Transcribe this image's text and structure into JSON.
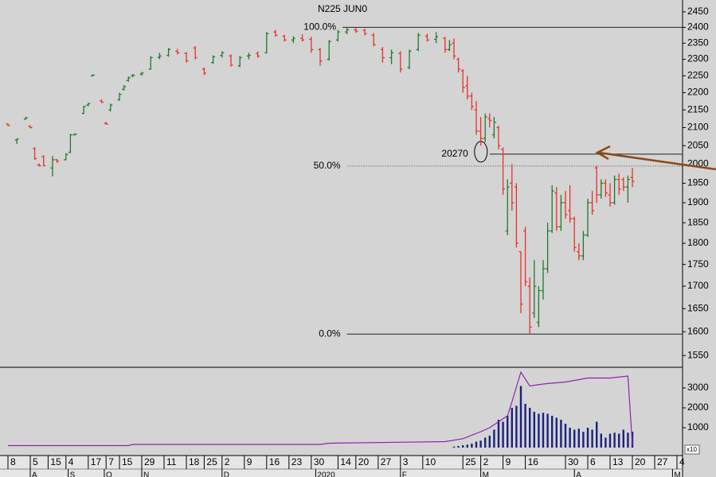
{
  "chart_data": [
    {
      "type": "ohlc",
      "title": "N225 JUN0",
      "log_scale": true,
      "ylim": [
        1526,
        2489
      ],
      "yticks": [
        1550,
        1600,
        1650,
        1700,
        1750,
        1800,
        1850,
        1900,
        1950,
        2000,
        2050,
        2100,
        2150,
        2200,
        2250,
        2300,
        2350,
        2400,
        2450
      ],
      "xlim": [
        0,
        151.25
      ],
      "up_color": "#1f7a2a",
      "down_color": "#e8302a",
      "x": [
        0,
        2,
        4,
        5,
        6,
        7,
        8,
        10,
        11,
        13,
        14,
        15,
        17,
        18,
        19,
        21,
        22,
        23,
        25,
        26,
        27,
        28,
        30,
        32,
        34,
        36,
        38,
        40,
        42,
        44,
        46,
        48,
        50,
        52,
        54,
        56,
        58,
        60,
        62,
        64,
        66,
        68,
        70,
        72,
        74,
        76,
        78,
        80,
        82,
        84,
        86,
        88,
        90,
        92,
        94,
        96,
        98,
        99,
        100,
        101,
        102,
        103,
        104,
        105,
        106,
        107,
        108,
        109,
        110,
        111,
        112,
        113,
        114,
        115,
        116,
        117,
        118,
        119,
        120,
        121,
        122,
        123,
        124,
        125,
        126,
        127,
        128,
        129,
        130,
        131,
        132,
        133,
        134,
        135,
        136,
        137,
        138,
        139,
        140
      ],
      "open": [
        2110,
        2065,
        2124,
        2104,
        2042,
        1998,
        2020,
        1990,
        2012,
        2012,
        2032,
        2080,
        2140,
        2164,
        2250,
        2176,
        2112,
        2150,
        2180,
        2210,
        2236,
        2250,
        2255,
        2270,
        2306,
        2312,
        2325,
        2318,
        2335,
        2270,
        2290,
        2312,
        2310,
        2280,
        2310,
        2318,
        2320,
        2385,
        2372,
        2360,
        2365,
        2362,
        2330,
        2300,
        2360,
        2385,
        2392,
        2390,
        2375,
        2330,
        2305,
        2318,
        2275,
        2330,
        2372,
        2362,
        2365,
        2330,
        2350,
        2300,
        2265,
        2220,
        2190,
        2150,
        2090,
        2070,
        2125,
        2080,
        2100,
        2040,
        1830,
        1950,
        1940,
        1780,
        1830,
        1700,
        1640,
        1620,
        1690,
        1740,
        1830,
        1925,
        1840,
        1900,
        1880,
        1860,
        1780,
        1770,
        1820,
        1900,
        1990,
        1920,
        1950,
        1920,
        1900,
        1960,
        1960,
        1940,
        1965
      ],
      "high": [
        2112,
        2070,
        2130,
        2106,
        2046,
        2002,
        2024,
        2022,
        2014,
        2030,
        2082,
        2084,
        2162,
        2170,
        2254,
        2180,
        2116,
        2168,
        2200,
        2222,
        2248,
        2255,
        2262,
        2310,
        2320,
        2335,
        2332,
        2322,
        2340,
        2275,
        2312,
        2325,
        2315,
        2310,
        2320,
        2324,
        2385,
        2392,
        2376,
        2372,
        2378,
        2370,
        2335,
        2360,
        2392,
        2398,
        2400,
        2396,
        2382,
        2338,
        2330,
        2325,
        2330,
        2382,
        2380,
        2385,
        2370,
        2360,
        2365,
        2305,
        2270,
        2250,
        2200,
        2175,
        2130,
        2140,
        2140,
        2130,
        2105,
        2045,
        1960,
        2000,
        1950,
        1780,
        1840,
        1720,
        1760,
        1700,
        1760,
        1850,
        1945,
        1940,
        1920,
        1930,
        1945,
        1865,
        1800,
        1830,
        1910,
        1930,
        1995,
        1960,
        1960,
        1950,
        1970,
        1975,
        1965,
        1970,
        1990
      ],
      "low": [
        2104,
        2055,
        2122,
        2098,
        2012,
        1994,
        1994,
        1968,
        2004,
        2010,
        2030,
        2078,
        2138,
        2160,
        2248,
        2170,
        2108,
        2146,
        2176,
        2206,
        2232,
        2245,
        2250,
        2268,
        2300,
        2308,
        2315,
        2290,
        2300,
        2252,
        2286,
        2305,
        2278,
        2276,
        2300,
        2305,
        2318,
        2370,
        2355,
        2350,
        2355,
        2320,
        2280,
        2296,
        2355,
        2378,
        2382,
        2375,
        2340,
        2290,
        2285,
        2260,
        2270,
        2325,
        2355,
        2350,
        2320,
        2325,
        2300,
        2260,
        2200,
        2180,
        2150,
        2080,
        2050,
        2060,
        2100,
        2070,
        2040,
        1920,
        1820,
        1880,
        1790,
        1640,
        1700,
        1595,
        1630,
        1610,
        1670,
        1730,
        1825,
        1830,
        1830,
        1860,
        1850,
        1780,
        1760,
        1760,
        1815,
        1870,
        1900,
        1910,
        1915,
        1890,
        1895,
        1920,
        1930,
        1900,
        1940
      ],
      "close": [
        2106,
        2068,
        2128,
        2100,
        2015,
        1996,
        1996,
        2012,
        2008,
        2026,
        2080,
        2082,
        2160,
        2168,
        2252,
        2172,
        2110,
        2164,
        2195,
        2218,
        2244,
        2252,
        2258,
        2305,
        2310,
        2330,
        2320,
        2295,
        2305,
        2258,
        2308,
        2320,
        2282,
        2305,
        2312,
        2310,
        2380,
        2375,
        2360,
        2365,
        2360,
        2330,
        2295,
        2355,
        2385,
        2392,
        2388,
        2380,
        2345,
        2305,
        2320,
        2270,
        2325,
        2375,
        2360,
        2370,
        2330,
        2345,
        2310,
        2270,
        2215,
        2190,
        2160,
        2090,
        2070,
        2130,
        2120,
        2115,
        2050,
        1935,
        1940,
        1900,
        1800,
        1660,
        1710,
        1610,
        1700,
        1690,
        1740,
        1830,
        1930,
        1840,
        1900,
        1870,
        1860,
        1790,
        1770,
        1820,
        1900,
        1880,
        1920,
        1950,
        1925,
        1900,
        1960,
        1935,
        1940,
        1960,
        1955
      ],
      "levels": [
        {
          "value": 2400,
          "label": "100.0%",
          "from": 75
        },
        {
          "value": 1995,
          "label": "50.0%",
          "from": 76,
          "dotted": true
        },
        {
          "value": 1595,
          "label": "0.0%",
          "from": 76
        },
        {
          "value": 2027,
          "label": "20270",
          "from": 108,
          "circled": true
        }
      ]
    },
    {
      "type": "volume",
      "ylim": [
        -360,
        4040
      ],
      "yticks": [
        1000,
        2000,
        3000
      ],
      "xlim": [
        0,
        151.25
      ],
      "volume_color": "#1a237e",
      "oi_color": "#8e24aa",
      "volume_x": [
        100,
        101,
        102,
        103,
        104,
        105,
        106,
        107,
        108,
        109,
        110,
        111,
        112,
        113,
        114,
        115,
        116,
        117,
        118,
        119,
        120,
        121,
        122,
        123,
        124,
        125,
        126,
        127,
        128,
        129,
        130,
        131,
        132,
        133,
        134,
        135,
        136,
        137,
        138,
        139,
        140
      ],
      "volume": [
        50,
        80,
        120,
        150,
        200,
        300,
        350,
        500,
        600,
        900,
        1400,
        1300,
        1600,
        2000,
        2100,
        3100,
        2200,
        2000,
        1800,
        1700,
        1750,
        1700,
        1600,
        1500,
        1400,
        1200,
        1000,
        900,
        950,
        800,
        1000,
        900,
        1300,
        700,
        500,
        700,
        750,
        700,
        900,
        750,
        800
      ],
      "oi_x": [
        0,
        27,
        28,
        70,
        72,
        98,
        102,
        106,
        108,
        110,
        112,
        113,
        115,
        117,
        120,
        125,
        130,
        135,
        139,
        140
      ],
      "open_interest": [
        100,
        100,
        160,
        160,
        220,
        300,
        450,
        800,
        1000,
        1300,
        1600,
        2300,
        3800,
        3100,
        3200,
        3300,
        3500,
        3500,
        3600,
        120
      ],
      "unit_label": "x10",
      "xticks": [
        {
          "value": 0,
          "label": "8"
        },
        {
          "value": 5,
          "label": "5"
        },
        {
          "value": 9,
          "label": "15"
        },
        {
          "value": 13,
          "label": "4"
        },
        {
          "value": 18,
          "label": "17"
        },
        {
          "value": 22,
          "label": "7"
        },
        {
          "value": 25,
          "label": "15"
        },
        {
          "value": 30,
          "label": "29"
        },
        {
          "value": 35,
          "label": "11"
        },
        {
          "value": 40,
          "label": "18"
        },
        {
          "value": 44,
          "label": "25"
        },
        {
          "value": 48,
          "label": "2"
        },
        {
          "value": 53,
          "label": "9"
        },
        {
          "value": 58,
          "label": "16"
        },
        {
          "value": 63,
          "label": "23"
        },
        {
          "value": 68,
          "label": "30"
        },
        {
          "value": 74,
          "label": "14"
        },
        {
          "value": 78,
          "label": "20"
        },
        {
          "value": 83,
          "label": "27"
        },
        {
          "value": 88,
          "label": "3"
        },
        {
          "value": 93,
          "label": "10"
        },
        {
          "value": 102,
          "label": "25"
        },
        {
          "value": 106,
          "label": "2"
        },
        {
          "value": 111,
          "label": "9"
        },
        {
          "value": 116,
          "label": "16"
        },
        {
          "value": 125,
          "label": "30"
        },
        {
          "value": 130,
          "label": "6"
        },
        {
          "value": 135,
          "label": "13"
        },
        {
          "value": 140,
          "label": "20"
        },
        {
          "value": 145,
          "label": "27"
        },
        {
          "value": 150,
          "label": "4"
        }
      ],
      "months": [
        {
          "value": 5,
          "label": "A"
        },
        {
          "value": 13.5,
          "label": "S"
        },
        {
          "value": 21.6,
          "label": "O"
        },
        {
          "value": 30,
          "label": "N"
        },
        {
          "value": 48,
          "label": "D"
        },
        {
          "value": 69,
          "label": "2020"
        },
        {
          "value": 88,
          "label": "F"
        },
        {
          "value": 106,
          "label": "M"
        },
        {
          "value": 127,
          "label": "A"
        },
        {
          "value": 149,
          "label": "M"
        }
      ]
    }
  ]
}
